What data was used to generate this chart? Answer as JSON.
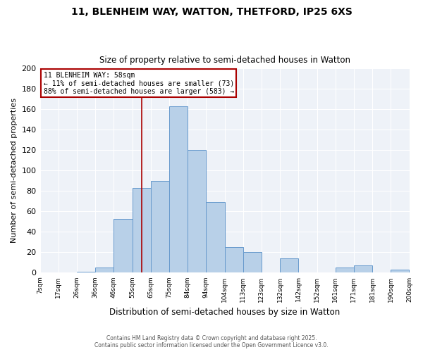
{
  "title_line1": "11, BLENHEIM WAY, WATTON, THETFORD, IP25 6XS",
  "title_line2": "Size of property relative to semi-detached houses in Watton",
  "xlabel": "Distribution of semi-detached houses by size in Watton",
  "ylabel": "Number of semi-detached properties",
  "bin_labels": [
    "7sqm",
    "17sqm",
    "26sqm",
    "36sqm",
    "46sqm",
    "55sqm",
    "65sqm",
    "75sqm",
    "84sqm",
    "94sqm",
    "104sqm",
    "113sqm",
    "123sqm",
    "132sqm",
    "142sqm",
    "152sqm",
    "161sqm",
    "171sqm",
    "181sqm",
    "190sqm",
    "200sqm"
  ],
  "values": [
    0,
    0,
    1,
    5,
    53,
    83,
    90,
    163,
    120,
    69,
    25,
    20,
    0,
    14,
    0,
    0,
    5,
    7,
    0,
    3
  ],
  "n_bars": 20,
  "vline_pos": 5.5,
  "annotation_title": "11 BLENHEIM WAY: 58sqm",
  "annotation_line2": "← 11% of semi-detached houses are smaller (73)",
  "annotation_line3": "88% of semi-detached houses are larger (583) →",
  "bar_color": "#b8d0e8",
  "bar_edge_color": "#6699cc",
  "vline_color": "#aa0000",
  "annotation_box_edgecolor": "#aa0000",
  "background_color": "#eef2f8",
  "ylim": [
    0,
    200
  ],
  "yticks": [
    0,
    20,
    40,
    60,
    80,
    100,
    120,
    140,
    160,
    180,
    200
  ],
  "footer_line1": "Contains HM Land Registry data © Crown copyright and database right 2025.",
  "footer_line2": "Contains public sector information licensed under the Open Government Licence v3.0."
}
